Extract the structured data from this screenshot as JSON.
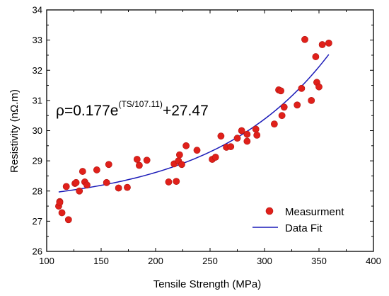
{
  "chart_data": {
    "type": "scatter",
    "xlabel": "Tensile Strength (MPa)",
    "ylabel": "Resistivity (nΩ.m)",
    "xlim": [
      100,
      400
    ],
    "ylim": [
      26,
      34
    ],
    "x_ticks": [
      100,
      150,
      200,
      250,
      300,
      350,
      400
    ],
    "y_ticks": [
      26,
      27,
      28,
      29,
      30,
      31,
      32,
      33,
      34
    ],
    "grid": false,
    "legend_position": "bottom-right",
    "series": [
      {
        "name": "Measurment",
        "kind": "scatter",
        "color": "#e0201a",
        "points": [
          [
            111,
            27.5
          ],
          [
            112,
            27.65
          ],
          [
            112,
            27.62
          ],
          [
            114,
            27.28
          ],
          [
            118,
            28.15
          ],
          [
            120,
            27.05
          ],
          [
            126,
            28.25
          ],
          [
            127,
            28.28
          ],
          [
            130,
            28.0
          ],
          [
            133,
            28.65
          ],
          [
            135,
            28.3
          ],
          [
            137,
            28.2
          ],
          [
            146,
            28.7
          ],
          [
            155,
            28.28
          ],
          [
            157,
            28.88
          ],
          [
            166,
            28.1
          ],
          [
            174,
            28.12
          ],
          [
            183,
            29.05
          ],
          [
            185,
            28.85
          ],
          [
            192,
            29.02
          ],
          [
            212,
            28.3
          ],
          [
            217,
            28.9
          ],
          [
            219,
            28.32
          ],
          [
            221,
            29.0
          ],
          [
            222,
            29.2
          ],
          [
            224,
            28.88
          ],
          [
            228,
            29.5
          ],
          [
            238,
            29.35
          ],
          [
            252,
            29.05
          ],
          [
            255,
            29.12
          ],
          [
            260,
            29.82
          ],
          [
            265,
            29.45
          ],
          [
            269,
            29.47
          ],
          [
            275,
            29.75
          ],
          [
            279,
            30.0
          ],
          [
            284,
            29.65
          ],
          [
            284,
            29.88
          ],
          [
            292,
            30.05
          ],
          [
            293,
            29.85
          ],
          [
            309,
            30.22
          ],
          [
            313,
            31.35
          ],
          [
            315,
            31.32
          ],
          [
            316,
            30.5
          ],
          [
            318,
            30.78
          ],
          [
            330,
            30.85
          ],
          [
            334,
            31.4
          ],
          [
            337,
            33.02
          ],
          [
            343,
            31.0
          ],
          [
            347,
            32.45
          ],
          [
            348,
            31.6
          ],
          [
            350,
            31.45
          ],
          [
            353,
            32.85
          ],
          [
            359,
            32.9
          ]
        ]
      },
      {
        "name": "Data Fit",
        "kind": "line",
        "color": "#1a1ab8",
        "model": {
          "a": 0.177,
          "b": 107.11,
          "c": 27.47,
          "x_range": [
            111,
            359
          ]
        }
      }
    ],
    "annotations": [
      {
        "base": "ρ=0.177e",
        "exponent": "(TS/107.11)",
        "tail": "+27.47"
      }
    ]
  }
}
